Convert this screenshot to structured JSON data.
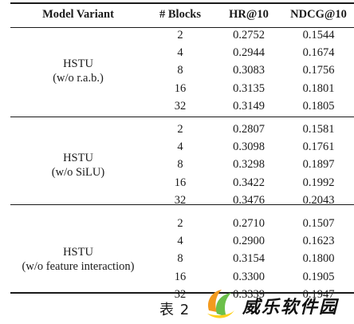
{
  "table": {
    "headers": [
      "Model Variant",
      "# Blocks",
      "HR@10",
      "NDCG@10"
    ],
    "groups": [
      {
        "variant_line1": "HSTU",
        "variant_line2": "(w/o r.a.b.)",
        "rows": [
          [
            "2",
            "0.2752",
            "0.1544"
          ],
          [
            "4",
            "0.2944",
            "0.1674"
          ],
          [
            "8",
            "0.3083",
            "0.1756"
          ],
          [
            "16",
            "0.3135",
            "0.1801"
          ],
          [
            "32",
            "0.3149",
            "0.1805"
          ]
        ]
      },
      {
        "variant_line1": "HSTU",
        "variant_line2": "(w/o SiLU)",
        "rows": [
          [
            "2",
            "0.2807",
            "0.1581"
          ],
          [
            "4",
            "0.3098",
            "0.1761"
          ],
          [
            "8",
            "0.3298",
            "0.1897"
          ],
          [
            "16",
            "0.3422",
            "0.1992"
          ],
          [
            "32",
            "0.3476",
            "0.2043"
          ]
        ]
      },
      {
        "variant_line1": "HSTU",
        "variant_line2": "(w/o feature interaction)",
        "rows": [
          [
            "2",
            "0.2710",
            "0.1507"
          ],
          [
            "4",
            "0.2900",
            "0.1623"
          ],
          [
            "8",
            "0.3154",
            "0.1800"
          ],
          [
            "16",
            "0.3300",
            "0.1905"
          ],
          [
            "32",
            "0.3339",
            "0.1947"
          ]
        ]
      }
    ]
  },
  "caption": "表 2",
  "watermark": {
    "text": "威乐软件园",
    "colors": {
      "orange": "#f39a1e",
      "green": "#6cc04a",
      "yellow": "#ffd21f"
    }
  }
}
